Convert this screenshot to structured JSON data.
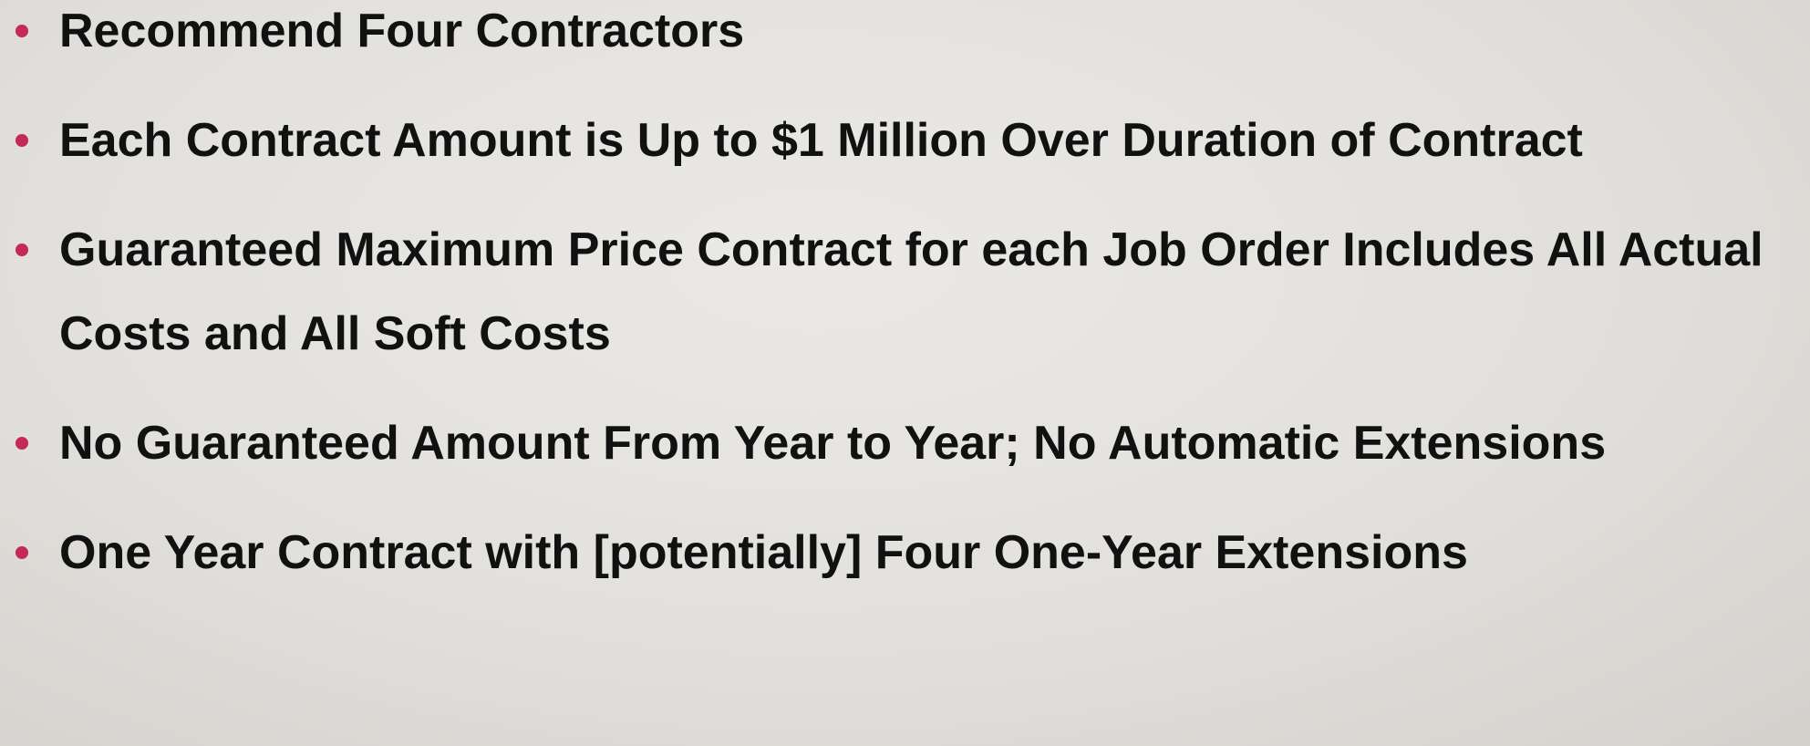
{
  "bullets": [
    "Recommend Four Contractors",
    "Each Contract Amount is Up to $1 Million Over Duration of Contract",
    "Guaranteed Maximum Price Contract for each Job Order Includes All Actual Costs and All Soft Costs",
    "No Guaranteed Amount From Year to Year; No Automatic Extensions",
    "One Year Contract with [potentially] Four One-Year Extensions"
  ]
}
